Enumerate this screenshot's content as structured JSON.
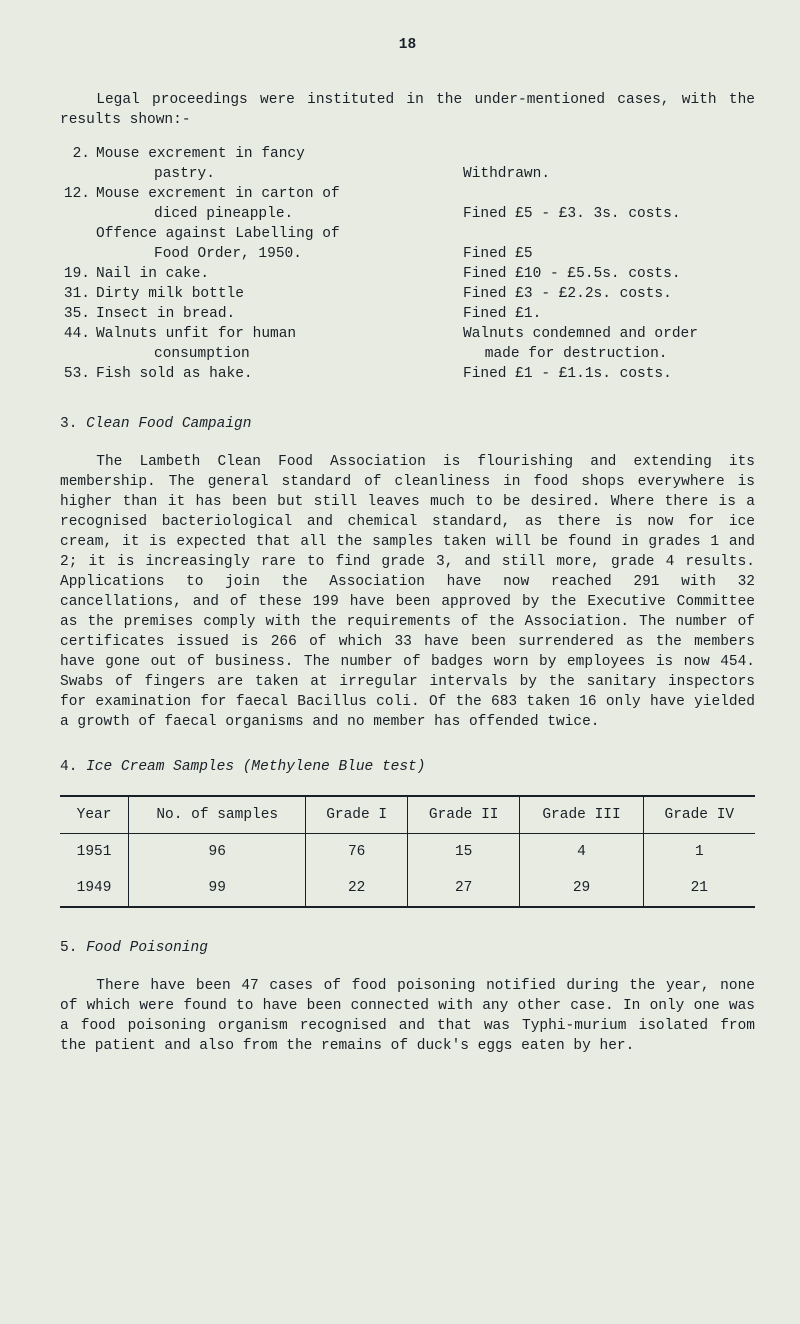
{
  "page_number": "18",
  "intro": "Legal proceedings were instituted in the under-mentioned cases, with the results shown:-",
  "offences": [
    {
      "num": "2.",
      "desc_a": "Mouse excrement in fancy",
      "desc_b": "pastry.",
      "result": "Withdrawn."
    },
    {
      "num": "12.",
      "desc_a": "Mouse excrement in carton of",
      "desc_b": "diced pineapple.",
      "result": "Fined £5 - £3. 3s. costs."
    },
    {
      "num": "",
      "desc_a": "Offence against Labelling of",
      "desc_b": "Food Order, 1950.",
      "result": "Fined £5"
    },
    {
      "num": "19.",
      "desc_a": "Nail in cake.",
      "desc_b": "",
      "result": "Fined £10 - £5.5s. costs."
    },
    {
      "num": "31.",
      "desc_a": "Dirty milk bottle",
      "desc_b": "",
      "result": "Fined £3 - £2.2s. costs."
    },
    {
      "num": "35.",
      "desc_a": "Insect in bread.",
      "desc_b": "",
      "result": "Fined £1."
    },
    {
      "num": "44.",
      "desc_a": "Walnuts unfit for human",
      "desc_b": "consumption",
      "result_a": "Walnuts condemned and order",
      "result_b": "made for destruction."
    },
    {
      "num": "53.",
      "desc_a": "Fish sold as hake.",
      "desc_b": "",
      "result": "Fined £1 - £1.1s. costs."
    }
  ],
  "section3": {
    "num": "3.",
    "title": "Clean Food Campaign",
    "body": "The Lambeth Clean Food Association is flourishing and extending its membership. The general standard of cleanliness in food shops everywhere is higher than it has been but still leaves much to be desired. Where there is a recognised bacteriological and chemical standard, as there is now for ice cream, it is expected that all the samples taken will be found in grades 1 and 2; it is increasingly rare to find grade 3, and still more, grade 4 results. Applications to join the Association have now reached 291 with 32 cancellations, and of these 199 have been approved by the Executive Committee as the premises comply with the requirements of the Association. The number of certificates issued is 266 of which 33 have been surrendered as the members have gone out of business. The number of badges worn by employees is now 454. Swabs of fingers are taken at irregular intervals by the sanitary inspectors for examination for faecal Bacillus coli. Of the 683 taken 16 only have yielded a growth of faecal organisms and no member has offended twice."
  },
  "section4": {
    "num": "4.",
    "title": "Ice Cream Samples (Methylene Blue test)",
    "table": {
      "type": "table",
      "columns": [
        "Year",
        "No. of samples",
        "Grade I",
        "Grade II",
        "Grade III",
        "Grade IV"
      ],
      "rows": [
        [
          "1951",
          "96",
          "76",
          "15",
          "4",
          "1"
        ],
        [
          "1949",
          "99",
          "22",
          "27",
          "29",
          "21"
        ]
      ],
      "border_color": "#1a2028",
      "background_color": "#e8ebe2",
      "font_family": "Courier New"
    }
  },
  "section5": {
    "num": "5.",
    "title": "Food Poisoning",
    "body": "There have been 47 cases of food poisoning notified during the year, none of which were found to have been connected with any other case. In only one was a food poisoning organism recognised and that was Typhi-murium isolated from the patient and also from the remains of duck's eggs eaten by her."
  },
  "colors": {
    "background": "#e8ebe2",
    "text": "#1a2028"
  }
}
